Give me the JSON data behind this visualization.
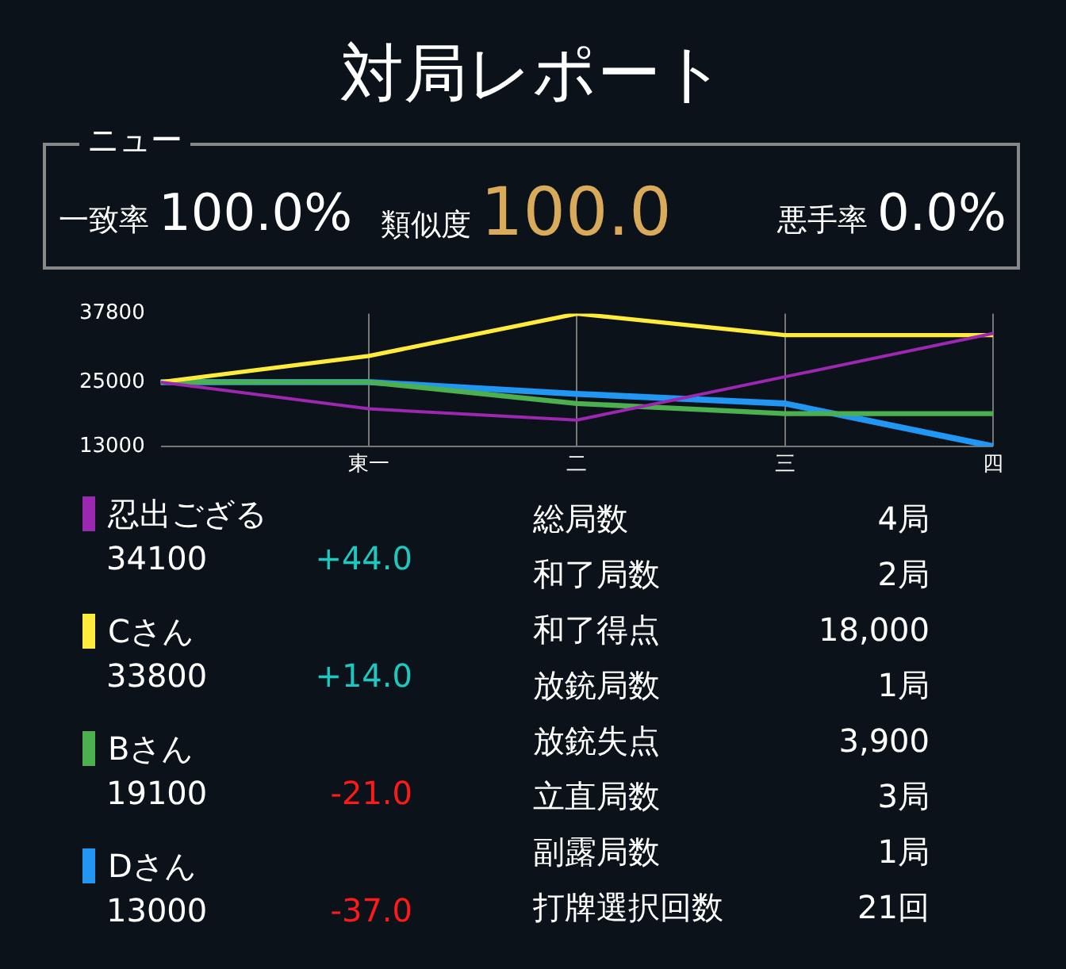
{
  "chart_data": [
    {
      "type": "other",
      "title": "対局レポート",
      "annotations": [
        "ニュー",
        "一致率",
        "100.0%",
        "類似度",
        "100.0",
        "悪手率",
        "0.0%"
      ]
    },
    {
      "type": "line",
      "categories": [
        null,
        "東一",
        "二",
        "三",
        "四"
      ],
      "ylim": [
        13000,
        37800
      ],
      "yticks": [
        13000,
        25000,
        37800
      ],
      "grid": "x",
      "legend": "bottom left",
      "marker": "none",
      "series": [
        {
          "name": "忍出ござる",
          "color": "#9c27b0",
          "values": [
            25000,
            20000,
            17900,
            26000,
            34100
          ]
        },
        {
          "name": "Cさん",
          "color": "#ffeb3b",
          "values": [
            25000,
            29900,
            37800,
            33800,
            33800
          ]
        },
        {
          "name": "Bさん",
          "color": "#4caf50",
          "values": [
            25000,
            25000,
            21000,
            19100,
            19100
          ]
        },
        {
          "name": "Dさん",
          "color": "#2196f3",
          "values": [
            25000,
            25000,
            22800,
            21000,
            13000
          ]
        }
      ],
      "annotations": [
        "34100",
        "+44.0",
        "33800",
        "+14.0",
        "19100",
        "-21.0",
        "13000",
        "-37.0"
      ]
    },
    {
      "type": "other",
      "annotations": [
        "総局数",
        "4局",
        "和了局数",
        "2局",
        "和了得点",
        "18,000",
        "放銃局数",
        "1局",
        "放銃失点",
        "3,900",
        "立直局数",
        "3局",
        "副露局数",
        "1局",
        "打牌選択回数",
        "21回"
      ]
    }
  ]
}
